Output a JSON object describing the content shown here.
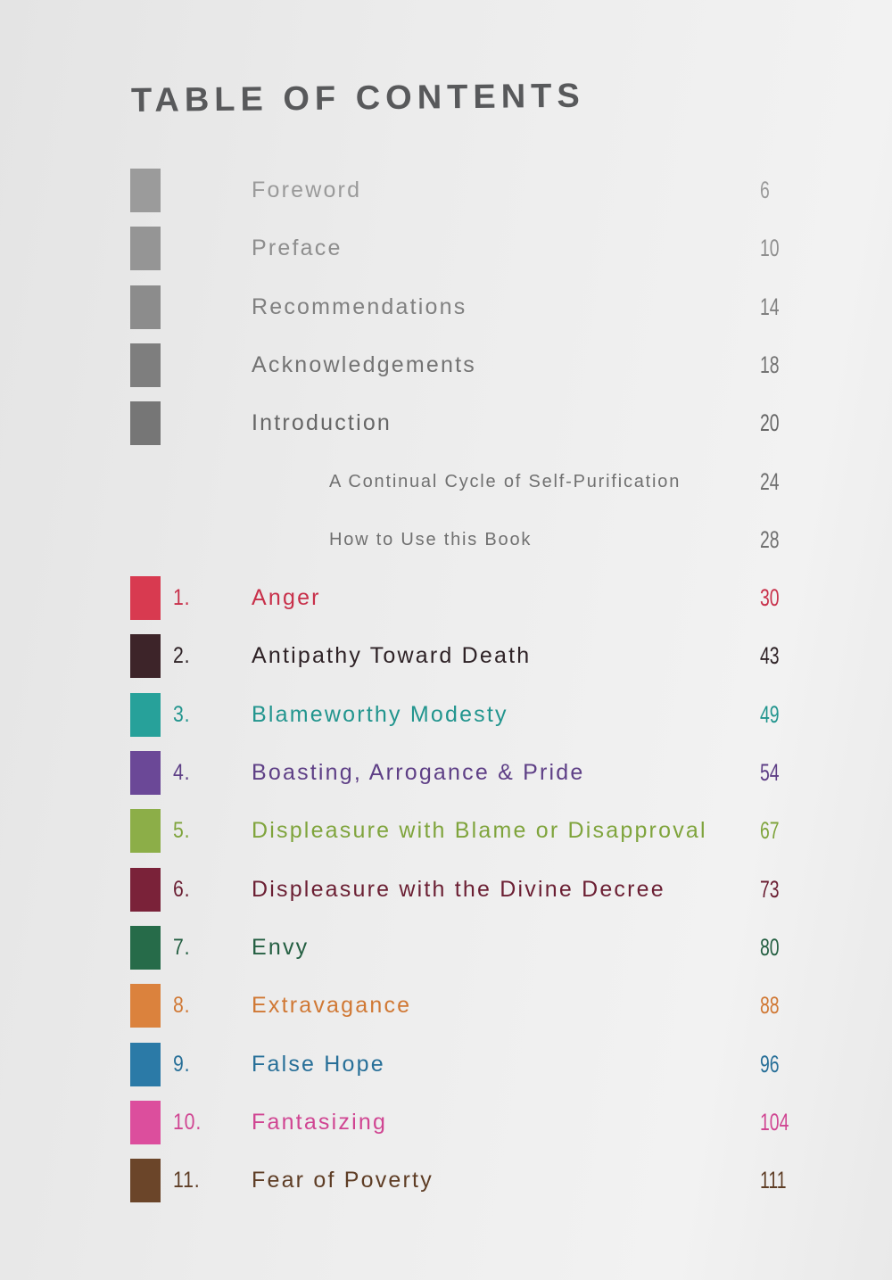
{
  "title": "TABLE OF CONTENTS",
  "front_matter": [
    {
      "label": "Foreword",
      "page": "6",
      "color": "#9b9b9b",
      "text_color": "#9a9a9a"
    },
    {
      "label": "Preface",
      "page": "10",
      "color": "#959595",
      "text_color": "#8e8e8e"
    },
    {
      "label": "Recommendations",
      "page": "14",
      "color": "#8c8c8c",
      "text_color": "#808080"
    },
    {
      "label": "Acknowledgements",
      "page": "18",
      "color": "#7e7e7e",
      "text_color": "#737373"
    },
    {
      "label": "Introduction",
      "page": "20",
      "color": "#767676",
      "text_color": "#666666"
    }
  ],
  "sub_sections": [
    {
      "label": "A Continual Cycle of Self-Purification",
      "page": "24",
      "text_color": "#707070"
    },
    {
      "label": "How to Use this Book",
      "page": "28",
      "text_color": "#707070"
    }
  ],
  "chapters": [
    {
      "number": "1.",
      "label": "Anger",
      "page": "30",
      "color": "#d83a50",
      "text_color": "#c8304a"
    },
    {
      "number": "2.",
      "label": "Antipathy Toward Death",
      "page": "43",
      "color": "#3d2429",
      "text_color": "#2e2226"
    },
    {
      "number": "3.",
      "label": "Blameworthy Modesty",
      "page": "49",
      "color": "#27a19a",
      "text_color": "#22958e"
    },
    {
      "number": "4.",
      "label": "Boasting, Arrogance & Pride",
      "page": "54",
      "color": "#6b4897",
      "text_color": "#5e3f86"
    },
    {
      "number": "5.",
      "label": "Displeasure with Blame or Disapproval",
      "page": "67",
      "color": "#8cae48",
      "text_color": "#7fa43c"
    },
    {
      "number": "6.",
      "label": "Displeasure with the Divine Decree",
      "page": "73",
      "color": "#7a2239",
      "text_color": "#6b1f33"
    },
    {
      "number": "7.",
      "label": "Envy",
      "page": "80",
      "color": "#266b49",
      "text_color": "#245f42"
    },
    {
      "number": "8.",
      "label": "Extravagance",
      "page": "88",
      "color": "#db823d",
      "text_color": "#d07834"
    },
    {
      "number": "9.",
      "label": "False Hope",
      "page": "96",
      "color": "#2b7aa7",
      "text_color": "#276f98"
    },
    {
      "number": "10.",
      "label": "Fantasizing",
      "page": "104",
      "color": "#dc4e9d",
      "text_color": "#d04592"
    },
    {
      "number": "11.",
      "label": "Fear of Poverty",
      "page": "111",
      "color": "#6b4529",
      "text_color": "#5e3d25"
    }
  ]
}
